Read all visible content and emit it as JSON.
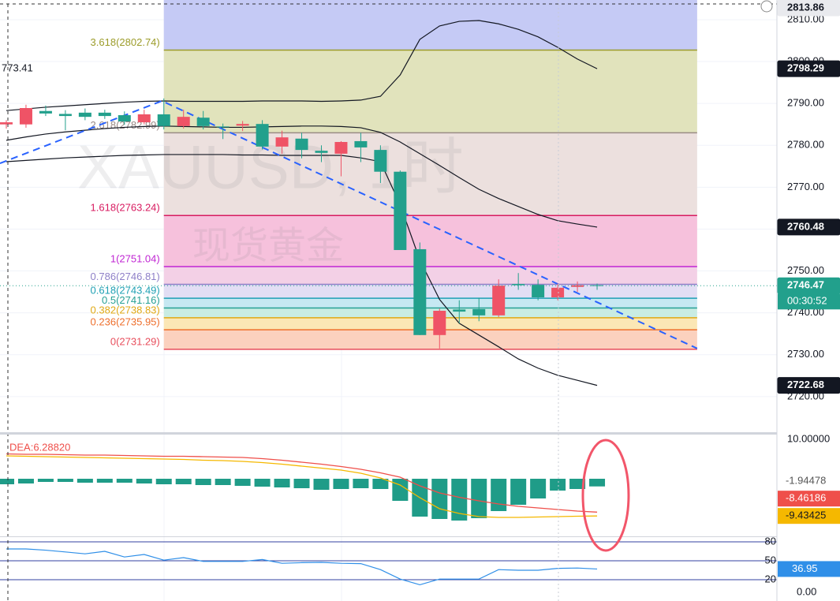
{
  "chart_data": [
    {
      "type": "candlestick",
      "title": "XAUUSD, 1时",
      "subtitle": "现货黄金",
      "xlim": [
        -0.32,
        39.13
      ],
      "ylim": [
        2711.5,
        2814.7
      ],
      "yticks": [
        {
          "value": 2720,
          "label": "2720.00"
        },
        {
          "value": 2730,
          "label": "2730.00"
        },
        {
          "value": 2740,
          "label": "2740.00"
        },
        {
          "value": 2750,
          "label": "2750.00"
        },
        {
          "value": 2760,
          "label": "2760.00"
        },
        {
          "value": 2770,
          "label": "2770.00"
        },
        {
          "value": 2780,
          "label": "2780.00"
        },
        {
          "value": 2790,
          "label": "2790.00"
        },
        {
          "value": 2800,
          "label": "2800.00"
        },
        {
          "value": 2810,
          "label": "2810.00"
        }
      ],
      "grid": true,
      "up_color": "#ef5366",
      "down_color": "#22a08c",
      "open": [
        2785,
        2785,
        2788.2,
        2787.5,
        2787.8,
        2787.8,
        2787.2,
        2785.5,
        2787.4,
        2784.6,
        2786.6,
        2784.5,
        2784.7,
        2785.1,
        2779.7,
        2781.6,
        2778.7,
        2778,
        2781,
        2778.9,
        2773.7,
        2755.2,
        2734.7,
        2740.8,
        2740.9,
        2739.4,
        2746.9,
        2746.7,
        2743.7,
        2746.2,
        2746.6
      ],
      "high": [
        2786,
        2789.7,
        2789.5,
        2788.4,
        2788.8,
        2788.5,
        2788.1,
        2788.5,
        2791.2,
        2788.5,
        2788.2,
        2785.2,
        2785.8,
        2786,
        2783.5,
        2783,
        2780,
        2781,
        2783,
        2780,
        2774,
        2756.8,
        2741,
        2743,
        2743.6,
        2748,
        2749.5,
        2748,
        2747,
        2747.5,
        2747
      ],
      "low": [
        2784,
        2784.2,
        2787,
        2783.6,
        2786,
        2786.3,
        2784.9,
        2785,
        2783.8,
        2784,
        2783.8,
        2781.5,
        2783.4,
        2779,
        2778,
        2776.9,
        2776,
        2772.6,
        2776,
        2771,
        2755,
        2734.7,
        2731.5,
        2737.5,
        2738,
        2739,
        2745.5,
        2743,
        2743,
        2745,
        2745.5
      ],
      "close": [
        2785.5,
        2788.9,
        2787.6,
        2787,
        2786.8,
        2787,
        2785.7,
        2787.4,
        2784.6,
        2786.8,
        2784.6,
        2784.3,
        2785.1,
        2779.7,
        2781.9,
        2778.9,
        2778.2,
        2780.8,
        2779.5,
        2773.7,
        2755,
        2734.7,
        2740.5,
        2740.3,
        2739.4,
        2746.5,
        2746.6,
        2743.7,
        2746,
        2746.6,
        2746.47
      ],
      "bands": [
        {
          "color": "#131722",
          "values": [
            2788.3,
            2788.7,
            2789.1,
            2789.4,
            2789.7,
            2790,
            2790.3,
            2790.5,
            2790.6,
            2790.5,
            2790.5,
            2790.5,
            2790.5,
            2790.6,
            2790.6,
            2790.6,
            2790.5,
            2790.6,
            2790.8,
            2791.7,
            2796.8,
            2805.3,
            2808.5,
            2809.6,
            2809.8,
            2809,
            2807.7,
            2805.9,
            2803.4,
            2800.6,
            2798.29
          ]
        },
        {
          "color": "#131722",
          "values": [
            2781.2,
            2782,
            2782.7,
            2783.2,
            2783.6,
            2784,
            2784.3,
            2784.5,
            2784.6,
            2784.5,
            2784.4,
            2784.3,
            2784.3,
            2784.4,
            2784.5,
            2784.6,
            2784.6,
            2784.5,
            2784.2,
            2783.1,
            2780.8,
            2778,
            2775.2,
            2772.3,
            2769.5,
            2767.3,
            2765.4,
            2763.5,
            2762,
            2761.2,
            2760.48
          ]
        },
        {
          "color": "#131722",
          "values": [
            2776.1,
            2776.4,
            2776.7,
            2777,
            2777.2,
            2777.4,
            2777.6,
            2777.7,
            2777.8,
            2777.8,
            2777.8,
            2777.8,
            2777.7,
            2777.7,
            2777.6,
            2777.6,
            2777.6,
            2777.6,
            2777,
            2776.1,
            2765.8,
            2752.6,
            2743.2,
            2737.5,
            2734.7,
            2731.9,
            2729,
            2726.8,
            2725.1,
            2723.9,
            2722.68
          ]
        }
      ],
      "trendline": {
        "color": "#2962ff",
        "x": [
          -0.32,
          7.9,
          35.08
        ],
        "values": [
          2775.7,
          2790.6,
          2731.5
        ]
      },
      "fib_range": [
        8.0,
        35.08
      ],
      "fib_top_fill": "#c5caf5",
      "fib_levels": [
        {
          "label": "3.618(2802.74)",
          "value": 2802.74,
          "color": "#9c9c2a",
          "fill": "#e1e3bc"
        },
        {
          "label": "2.618(2782.99)",
          "value": 2782.99,
          "color": "#9a8a86",
          "fill": "#ece0de"
        },
        {
          "label": "1.618(2763.24)",
          "value": 2763.24,
          "color": "#d81b60",
          "fill": "#f6c1dc"
        },
        {
          "label": "1(2751.04)",
          "value": 2751.04,
          "color": "#c026d3",
          "fill": "#f3d0e6"
        },
        {
          "label": "0.786(2746.81)",
          "value": 2746.81,
          "color": "#8e80c8",
          "fill": "#e2def4"
        },
        {
          "label": "0.618(2743.49)",
          "value": 2743.49,
          "color": "#1ea0b4",
          "fill": "#c6e8f2"
        },
        {
          "label": "0.5(2741.16)",
          "value": 2741.16,
          "color": "#26a095",
          "fill": "#c9ece3"
        },
        {
          "label": "0.382(2738.83)",
          "value": 2738.83,
          "color": "#e0a915",
          "fill": "#fbe7b5"
        },
        {
          "label": "0.236(2735.95)",
          "value": 2735.95,
          "color": "#ee6f2c",
          "fill": "#fbd1be"
        },
        {
          "label": "0(2731.29)",
          "value": 2731.29,
          "color": "#e84e5c",
          "fill": "none"
        }
      ],
      "high_tag": 2813.86,
      "crosshair_label": "773.41",
      "countdown": "00:30:52"
    },
    {
      "type": "macd",
      "legend_text": "DEA:6.28820",
      "xlim": [
        -0.32,
        39.13
      ],
      "ylim": [
        -14.6,
        11
      ],
      "yticks": [
        {
          "value": 10,
          "label": "10.00000"
        }
      ],
      "histogram": {
        "color": "#1f9c88",
        "values": [
          -1.4,
          -1.2,
          -0.8,
          -0.8,
          -1,
          -1,
          -1,
          -1.2,
          -1.4,
          -1.4,
          -1.6,
          -1.6,
          -1.8,
          -2,
          -2.2,
          -2.4,
          -2.8,
          -2.6,
          -2.4,
          -2.6,
          -5.6,
          -9.6,
          -10.2,
          -10.6,
          -10,
          -8.2,
          -6.6,
          -5,
          -3,
          -2.6,
          -1.94478
        ]
      },
      "series": [
        {
          "color": "#ef4f4a",
          "values": [
            6.3,
            6.2,
            6.2,
            6.1,
            6.0,
            6.0,
            5.9,
            5.8,
            5.7,
            5.7,
            5.6,
            5.5,
            5.4,
            5.1,
            4.7,
            4.2,
            3.7,
            3.1,
            2.4,
            1.5,
            0.4,
            -1.8,
            -3.6,
            -4.7,
            -5.6,
            -6.4,
            -7,
            -7.4,
            -7.8,
            -8.2,
            -8.46186
          ]
        },
        {
          "color": "#f5b800",
          "values": [
            5.8,
            5.7,
            5.6,
            5.5,
            5.4,
            5.3,
            5.2,
            5.1,
            5.0,
            4.9,
            4.7,
            4.6,
            4.4,
            4.1,
            3.7,
            3.2,
            2.7,
            2.2,
            1.4,
            0.2,
            -1.6,
            -4.8,
            -7.6,
            -8.8,
            -9.6,
            -9.8,
            -9.8,
            -9.7,
            -9.6,
            -9.5,
            -9.43425
          ]
        }
      ]
    },
    {
      "type": "line",
      "xlim": [
        -0.32,
        39.13
      ],
      "ylim": [
        -13.75,
        86.25
      ],
      "yticks": [
        {
          "value": 0,
          "label": "0.00"
        }
      ],
      "levels": [
        80,
        50,
        20
      ],
      "level_color": "#3340a0",
      "color": "#2f8fe8",
      "values": [
        68.75,
        68.75,
        66.8,
        64,
        61,
        65,
        56,
        60,
        51,
        55,
        49,
        49,
        49,
        52,
        46,
        47,
        47.5,
        46,
        45.5,
        36,
        21,
        12,
        21,
        21,
        21,
        36,
        35,
        35,
        38,
        38.5,
        36.95
      ]
    }
  ]
}
